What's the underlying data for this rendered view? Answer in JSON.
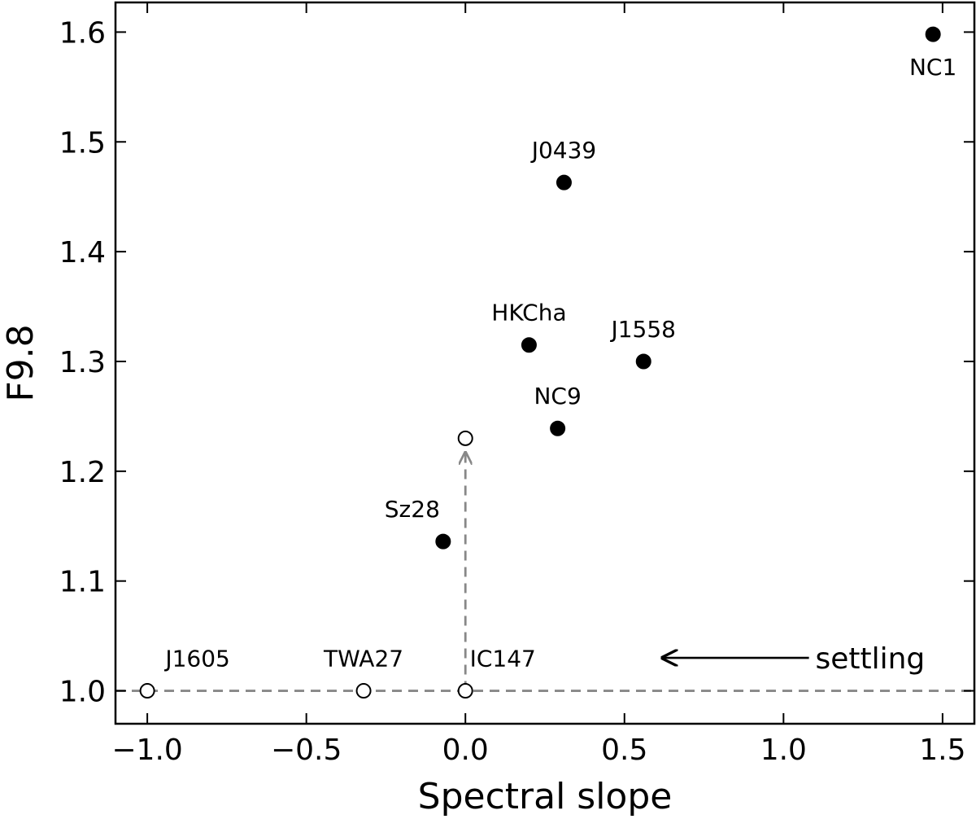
{
  "chart_data": {
    "type": "scatter",
    "xlabel": "Spectral slope",
    "ylabel": "F9.8",
    "xlim": [
      -1.1,
      1.6
    ],
    "ylim": [
      0.97,
      1.627
    ],
    "xticks": [
      -1.0,
      -0.5,
      0.0,
      0.5,
      1.0,
      1.5
    ],
    "xtick_labels": [
      "−1.0",
      "−0.5",
      "0.0",
      "0.5",
      "1.0",
      "1.5"
    ],
    "yticks": [
      1.0,
      1.1,
      1.2,
      1.3,
      1.4,
      1.5,
      1.6
    ],
    "ytick_labels": [
      "1.0",
      "1.1",
      "1.2",
      "1.3",
      "1.4",
      "1.5",
      "1.6"
    ],
    "grid": false,
    "series": [
      {
        "marker": "filled-circle",
        "color": "#000000",
        "points": [
          {
            "label": "NC1",
            "x": 1.47,
            "y": 1.598
          },
          {
            "label": "J0439",
            "x": 0.31,
            "y": 1.463
          },
          {
            "label": "HKCha",
            "x": 0.2,
            "y": 1.315
          },
          {
            "label": "J1558",
            "x": 0.56,
            "y": 1.3
          },
          {
            "label": "NC9",
            "x": 0.29,
            "y": 1.239
          },
          {
            "label": "Sz28",
            "x": -0.07,
            "y": 1.136
          }
        ]
      },
      {
        "marker": "open-circle",
        "color": "#000000",
        "points": [
          {
            "label": "J1605",
            "x": -1.0,
            "y": 1.0
          },
          {
            "label": "TWA27",
            "x": -0.32,
            "y": 1.0
          },
          {
            "label": "IC147",
            "x": 0.0,
            "y": 1.0
          },
          {
            "label": "",
            "x": 0.0,
            "y": 1.23
          }
        ]
      }
    ],
    "annotations": {
      "hline": {
        "y": 1.0,
        "style": "dashed",
        "color": "#888888"
      },
      "vline_arrow": {
        "x": 0.0,
        "from_y": 1.0,
        "to_y": 1.217,
        "style": "dashed",
        "color": "#888888"
      },
      "settling": {
        "text": "settling",
        "x": 1.1,
        "y": 1.03,
        "arrow_from_x": 1.08,
        "arrow_to_x": 0.62
      }
    }
  }
}
